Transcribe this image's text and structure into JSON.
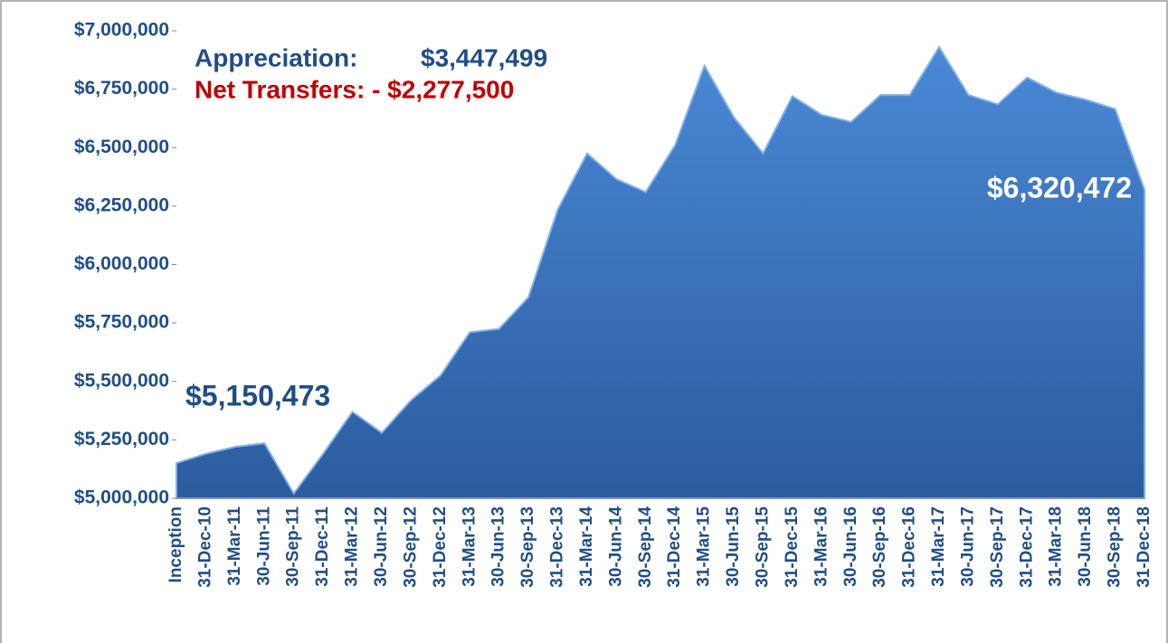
{
  "chart_data": {
    "type": "area",
    "categories": [
      "Inception",
      "31-Dec-10",
      "31-Mar-11",
      "30-Jun-11",
      "30-Sep-11",
      "31-Dec-11",
      "31-Mar-12",
      "30-Jun-12",
      "30-Sep-12",
      "31-Dec-12",
      "31-Mar-13",
      "30-Jun-13",
      "30-Sep-13",
      "31-Dec-13",
      "31-Mar-14",
      "30-Jun-14",
      "30-Sep-14",
      "31-Dec-14",
      "31-Mar-15",
      "30-Jun-15",
      "30-Sep-15",
      "31-Dec-15",
      "31-Mar-16",
      "30-Jun-16",
      "30-Sep-16",
      "31-Dec-16",
      "31-Mar-17",
      "30-Jun-17",
      "30-Sep-17",
      "31-Dec-17",
      "31-Mar-18",
      "30-Jun-18",
      "30-Sep-18",
      "31-Dec-18"
    ],
    "values": [
      5150473,
      5190000,
      5220000,
      5235000,
      5020000,
      5190000,
      5370000,
      5280000,
      5420000,
      5525000,
      5710000,
      5725000,
      5860000,
      6235000,
      6475000,
      6365000,
      6310000,
      6510000,
      6850000,
      6630000,
      6475000,
      6720000,
      6640000,
      6610000,
      6725000,
      6725000,
      6930000,
      6725000,
      6685000,
      6800000,
      6735000,
      6705000,
      6665000,
      6320472
    ],
    "value_labels": [
      "$5,150,473",
      null,
      null,
      null,
      null,
      null,
      null,
      null,
      null,
      null,
      null,
      null,
      null,
      null,
      null,
      null,
      null,
      null,
      null,
      null,
      null,
      null,
      null,
      null,
      null,
      null,
      null,
      null,
      null,
      null,
      null,
      null,
      null,
      "$6,320,472"
    ],
    "color": "#3f78c4",
    "ylim": [
      5000000,
      7000000
    ],
    "yticks": [
      {
        "value": 5000000,
        "label": "$5,000,000"
      },
      {
        "value": 5250000,
        "label": "$5,250,000"
      },
      {
        "value": 5500000,
        "label": "$5,500,000"
      },
      {
        "value": 5750000,
        "label": "$5,750,000"
      },
      {
        "value": 6000000,
        "label": "$6,000,000"
      },
      {
        "value": 6250000,
        "label": "$6,250,000"
      },
      {
        "value": 6500000,
        "label": "$6,500,000"
      },
      {
        "value": 6750000,
        "label": "$6,750,000"
      },
      {
        "value": 7000000,
        "label": "$7,000,000"
      }
    ],
    "annotations": [
      "Appreciation:",
      "$3,447,499",
      "Net Transfers: - $2,277,500"
    ]
  }
}
